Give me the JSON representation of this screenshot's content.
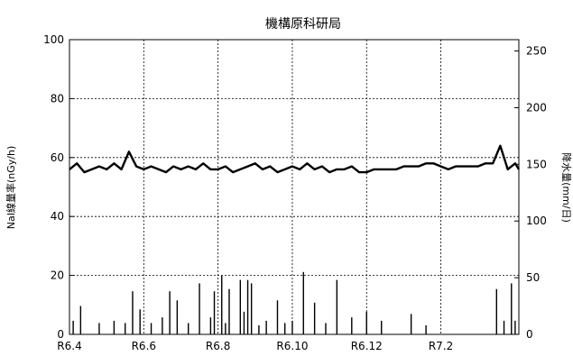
{
  "chart_data": {
    "type": "line",
    "title": "機構原科研局",
    "ylabel": "NaI線量率(nGy/h)",
    "y2label": "降水量(mm/日)",
    "ylim": [
      0,
      100
    ],
    "y2lim": [
      0,
      260
    ],
    "yticks": [
      "0",
      "20",
      "40",
      "60",
      "80",
      "100"
    ],
    "y2ticks": [
      "0",
      "50",
      "100",
      "150",
      "200",
      "250"
    ],
    "xticks": [
      "R6.4",
      "R6.6",
      "R6.8",
      "R6.10",
      "R6.12",
      "R7.2"
    ],
    "xlim_months": [
      0,
      12.1
    ],
    "grid": true,
    "series": [
      {
        "kind": "line",
        "x": [
          0.0,
          0.2,
          0.4,
          0.6,
          0.8,
          1.0,
          1.2,
          1.4,
          1.6,
          1.8,
          2.0,
          2.2,
          2.4,
          2.6,
          2.8,
          3.0,
          3.2,
          3.4,
          3.6,
          3.8,
          4.0,
          4.2,
          4.4,
          4.6,
          4.8,
          5.0,
          5.2,
          5.4,
          5.6,
          5.8,
          6.0,
          6.2,
          6.4,
          6.6,
          6.8,
          7.0,
          7.2,
          7.4,
          7.6,
          7.8,
          8.0,
          8.2,
          8.4,
          8.6,
          8.8,
          9.0,
          9.2,
          9.4,
          9.6,
          9.8,
          10.0,
          10.2,
          10.4,
          10.6,
          10.8,
          11.0,
          11.2,
          11.4,
          11.6,
          11.8,
          12.0,
          12.1
        ],
        "y": [
          56,
          58,
          55,
          56,
          57,
          56,
          58,
          56,
          62,
          57,
          56,
          57,
          56,
          55,
          57,
          56,
          57,
          56,
          58,
          56,
          56,
          57,
          55,
          56,
          57,
          58,
          56,
          57,
          55,
          56,
          57,
          56,
          58,
          56,
          57,
          55,
          56,
          56,
          57,
          55,
          55,
          56,
          56,
          56,
          56,
          57,
          57,
          57,
          58,
          58,
          57,
          56,
          57,
          57,
          57,
          57,
          58,
          58,
          64,
          56,
          58,
          56
        ]
      },
      {
        "kind": "bar",
        "axis": "right",
        "x": [
          0.1,
          0.3,
          0.8,
          1.2,
          1.5,
          1.7,
          1.9,
          2.2,
          2.5,
          2.7,
          2.9,
          3.2,
          3.5,
          3.8,
          3.9,
          4.1,
          4.2,
          4.3,
          4.6,
          4.7,
          4.8,
          4.9,
          5.1,
          5.3,
          5.6,
          5.8,
          6.0,
          6.3,
          6.6,
          6.9,
          7.2,
          7.6,
          8.0,
          8.4,
          9.2,
          9.6,
          11.5,
          11.7,
          11.9,
          12.0
        ],
        "y": [
          12,
          25,
          10,
          12,
          10,
          38,
          22,
          10,
          15,
          38,
          30,
          10,
          45,
          15,
          38,
          52,
          10,
          40,
          48,
          20,
          48,
          45,
          8,
          12,
          30,
          10,
          12,
          55,
          28,
          10,
          48,
          15,
          20,
          12,
          18,
          8,
          40,
          12,
          45,
          12
        ]
      }
    ]
  }
}
